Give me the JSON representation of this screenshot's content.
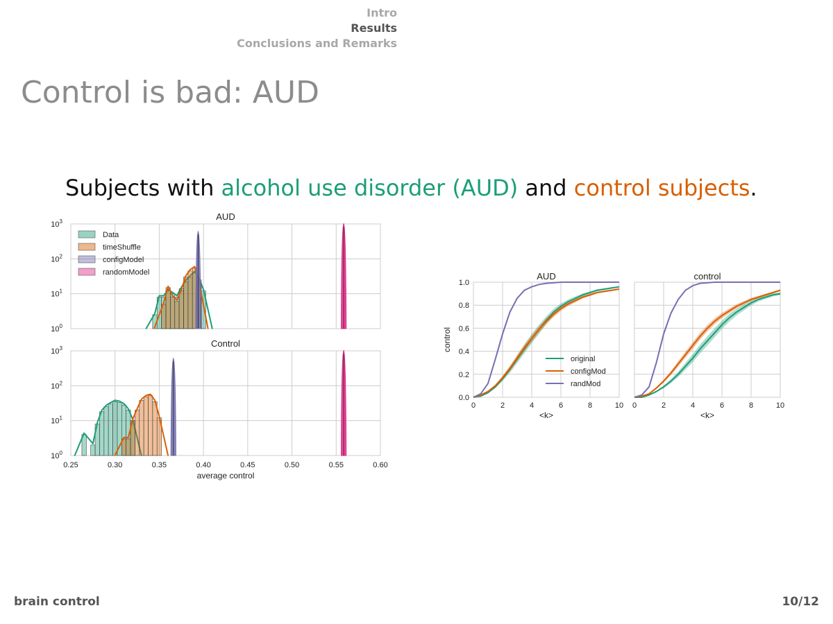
{
  "nav": {
    "items": [
      "Intro",
      "Results",
      "Conclusions and Remarks"
    ],
    "active_index": 1
  },
  "slide": {
    "title": "Control is bad: AUD",
    "subtitle": {
      "prefix": "Subjects with ",
      "aud_text": "alcohol use disorder (AUD)",
      "middle": " and ",
      "control_text": "control subjects",
      "suffix": "."
    }
  },
  "footer": {
    "left": "brain control",
    "right": "10/12"
  },
  "colors": {
    "data": "#1b9e77",
    "timeShuffle": "#d95f02",
    "configModel": "#7570b3",
    "randomModel": "#e7298a",
    "grid": "#cccccc"
  },
  "chart_data": [
    {
      "type": "bar",
      "panel": "histogram",
      "title": "AUD",
      "yscale": "log",
      "ylim": [
        1,
        1000
      ],
      "xlim": [
        0.25,
        0.6
      ],
      "y_ticks": [
        "10^0",
        "10^1",
        "10^2",
        "10^3"
      ],
      "x_ticks": [],
      "xlabel": "",
      "legend": {
        "placement": "top-left",
        "entries": [
          "Data",
          "timeShuffle",
          "configModel",
          "randomModel"
        ]
      },
      "series": [
        {
          "name": "Data",
          "bars": [
            [
              0.345,
              2.5
            ],
            [
              0.35,
              8
            ],
            [
              0.355,
              8
            ],
            [
              0.36,
              12
            ],
            [
              0.365,
              10
            ],
            [
              0.37,
              8
            ],
            [
              0.375,
              14
            ],
            [
              0.38,
              22
            ],
            [
              0.385,
              30
            ],
            [
              0.39,
              40
            ],
            [
              0.395,
              25
            ],
            [
              0.4,
              12
            ]
          ]
        },
        {
          "name": "timeShuffle",
          "bars": [
            [
              0.355,
              5
            ],
            [
              0.36,
              15
            ],
            [
              0.365,
              8
            ],
            [
              0.37,
              6
            ],
            [
              0.375,
              12
            ],
            [
              0.38,
              30
            ],
            [
              0.385,
              45
            ],
            [
              0.39,
              55
            ],
            [
              0.395,
              20
            ]
          ]
        },
        {
          "name": "configModel",
          "bars": [
            [
              0.394,
              600
            ]
          ]
        },
        {
          "name": "randomModel",
          "bars": [
            [
              0.5585,
              1000
            ]
          ]
        }
      ]
    },
    {
      "type": "bar",
      "panel": "histogram",
      "title": "Control",
      "yscale": "log",
      "ylim": [
        1,
        1000
      ],
      "xlim": [
        0.25,
        0.6
      ],
      "y_ticks": [
        "10^0",
        "10^1",
        "10^2",
        "10^3"
      ],
      "x_ticks": [
        "0.25",
        "0.30",
        "0.35",
        "0.40",
        "0.45",
        "0.50",
        "0.55",
        "0.60"
      ],
      "xlabel": "average control",
      "series": [
        {
          "name": "Data",
          "bars": [
            [
              0.265,
              4
            ],
            [
              0.275,
              2
            ],
            [
              0.28,
              8
            ],
            [
              0.285,
              18
            ],
            [
              0.29,
              25
            ],
            [
              0.295,
              30
            ],
            [
              0.3,
              35
            ],
            [
              0.305,
              33
            ],
            [
              0.31,
              28
            ],
            [
              0.315,
              20
            ],
            [
              0.32,
              10
            ]
          ]
        },
        {
          "name": "timeShuffle",
          "bars": [
            [
              0.31,
              3
            ],
            [
              0.315,
              3
            ],
            [
              0.32,
              10
            ],
            [
              0.325,
              20
            ],
            [
              0.33,
              38
            ],
            [
              0.335,
              48
            ],
            [
              0.34,
              52
            ],
            [
              0.345,
              35
            ],
            [
              0.35,
              12
            ]
          ]
        },
        {
          "name": "configModel",
          "bars": [
            [
              0.366,
              600
            ]
          ]
        },
        {
          "name": "randomModel",
          "bars": [
            [
              0.5585,
              1000
            ]
          ]
        }
      ]
    },
    {
      "type": "line",
      "panel": "curves",
      "title": "AUD",
      "xlabel": "<k>",
      "ylabel": "control",
      "xlim": [
        0,
        10
      ],
      "ylim": [
        0,
        1
      ],
      "x_ticks": [
        "0",
        "2",
        "4",
        "6",
        "8",
        "10"
      ],
      "y_ticks": [
        "0.0",
        "0.2",
        "0.4",
        "0.6",
        "0.8",
        "1.0"
      ],
      "legend": {
        "placement": "lower-right",
        "entries": [
          "original",
          "configMod",
          "randMod"
        ]
      },
      "x": [
        0,
        0.5,
        1,
        1.5,
        2,
        2.5,
        3,
        3.5,
        4,
        4.5,
        5,
        5.5,
        6,
        6.5,
        7,
        7.5,
        8,
        8.5,
        9,
        9.5,
        10
      ],
      "series": [
        {
          "name": "original",
          "values": [
            0.0,
            0.01,
            0.04,
            0.09,
            0.16,
            0.24,
            0.33,
            0.42,
            0.51,
            0.59,
            0.67,
            0.74,
            0.79,
            0.83,
            0.86,
            0.89,
            0.91,
            0.93,
            0.94,
            0.95,
            0.96
          ],
          "band": 0.04
        },
        {
          "name": "configMod",
          "values": [
            0.0,
            0.02,
            0.05,
            0.1,
            0.17,
            0.25,
            0.34,
            0.43,
            0.51,
            0.59,
            0.66,
            0.72,
            0.77,
            0.81,
            0.84,
            0.87,
            0.89,
            0.91,
            0.92,
            0.93,
            0.94
          ],
          "band": 0.03
        },
        {
          "name": "randMod",
          "values": [
            0.0,
            0.03,
            0.12,
            0.33,
            0.55,
            0.74,
            0.86,
            0.93,
            0.96,
            0.98,
            0.99,
            0.995,
            1.0,
            1.0,
            1.0,
            1.0,
            1.0,
            1.0,
            1.0,
            1.0,
            1.0
          ],
          "band": 0.02
        }
      ]
    },
    {
      "type": "line",
      "panel": "curves",
      "title": "control",
      "xlabel": "<k>",
      "ylabel": "",
      "xlim": [
        0,
        10
      ],
      "ylim": [
        0,
        1
      ],
      "x_ticks": [
        "0",
        "2",
        "4",
        "6",
        "8",
        "10"
      ],
      "y_ticks": [],
      "x": [
        0,
        0.5,
        1,
        1.5,
        2,
        2.5,
        3,
        3.5,
        4,
        4.5,
        5,
        5.5,
        6,
        6.5,
        7,
        7.5,
        8,
        8.5,
        9,
        9.5,
        10
      ],
      "series": [
        {
          "name": "original",
          "values": [
            0.0,
            0.0,
            0.02,
            0.05,
            0.09,
            0.14,
            0.2,
            0.27,
            0.34,
            0.42,
            0.49,
            0.56,
            0.63,
            0.69,
            0.74,
            0.78,
            0.82,
            0.85,
            0.87,
            0.89,
            0.9
          ],
          "band": 0.04
        },
        {
          "name": "configMod",
          "values": [
            0.0,
            0.01,
            0.03,
            0.08,
            0.14,
            0.21,
            0.29,
            0.37,
            0.45,
            0.53,
            0.6,
            0.66,
            0.71,
            0.75,
            0.79,
            0.82,
            0.85,
            0.87,
            0.89,
            0.91,
            0.93
          ],
          "band": 0.03
        },
        {
          "name": "randMod",
          "values": [
            0.0,
            0.02,
            0.09,
            0.3,
            0.55,
            0.73,
            0.85,
            0.93,
            0.97,
            0.99,
            0.995,
            1.0,
            1.0,
            1.0,
            1.0,
            1.0,
            1.0,
            1.0,
            1.0,
            1.0,
            1.0
          ],
          "band": 0.02
        }
      ]
    }
  ]
}
